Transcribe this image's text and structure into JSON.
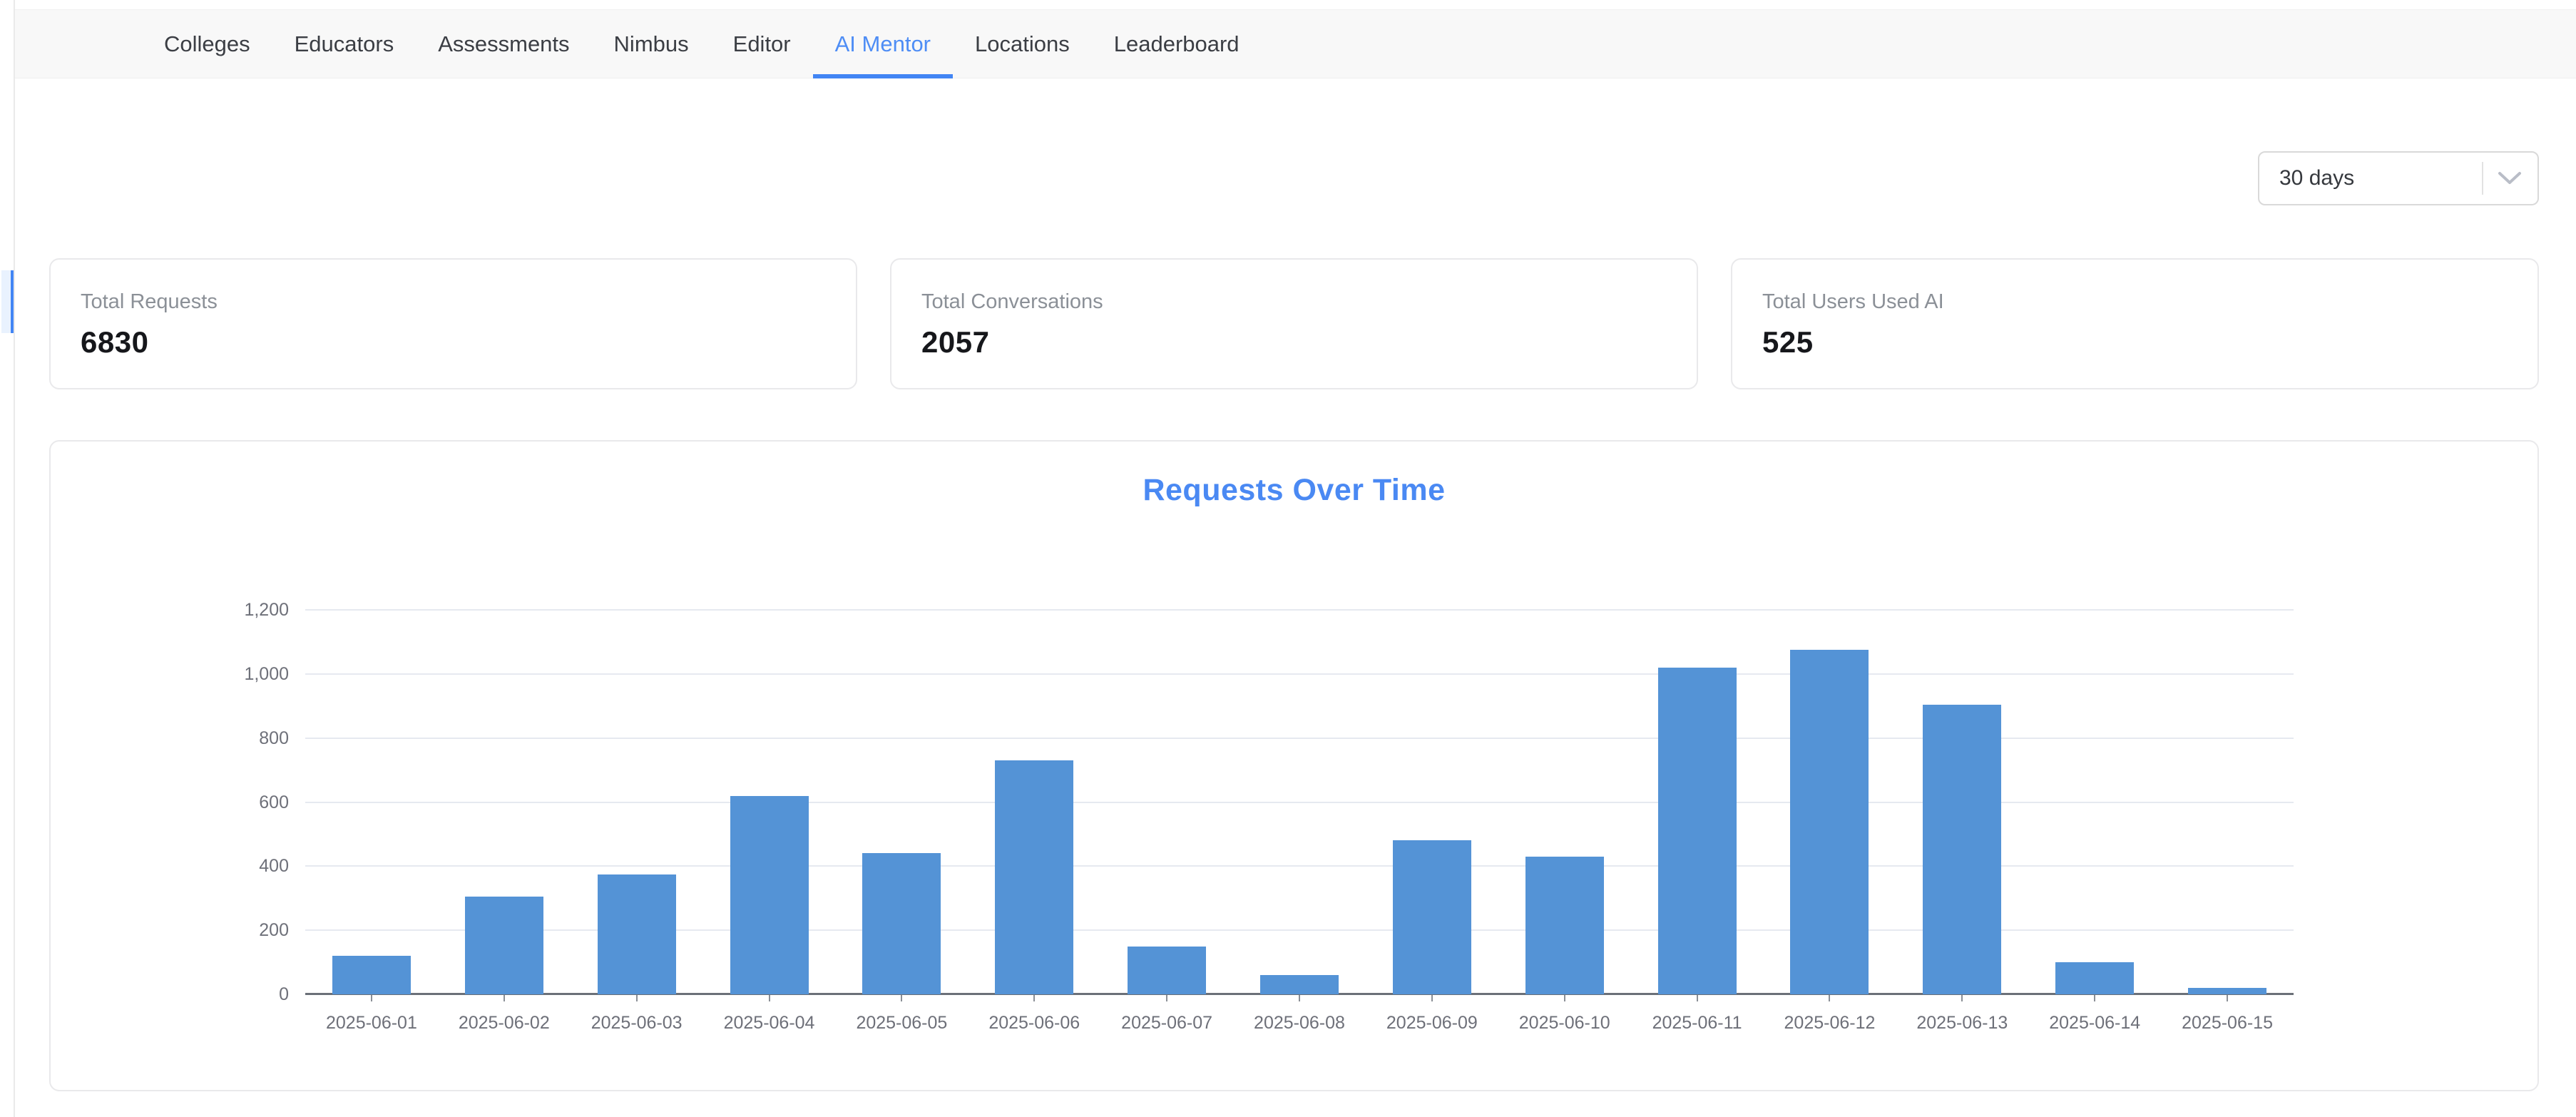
{
  "nav": {
    "tabs": [
      {
        "label": "Colleges",
        "active": false
      },
      {
        "label": "Educators",
        "active": false
      },
      {
        "label": "Assessments",
        "active": false
      },
      {
        "label": "Nimbus",
        "active": false
      },
      {
        "label": "Editor",
        "active": false
      },
      {
        "label": "AI Mentor",
        "active": true
      },
      {
        "label": "Locations",
        "active": false
      },
      {
        "label": "Leaderboard",
        "active": false
      }
    ]
  },
  "filters": {
    "range_select": {
      "value": "30 days",
      "icon": "chevron-down-icon"
    }
  },
  "stats": {
    "cards": [
      {
        "label": "Total Requests",
        "value": "6830"
      },
      {
        "label": "Total Conversations",
        "value": "2057"
      },
      {
        "label": "Total Users Used AI",
        "value": "525"
      }
    ]
  },
  "chart_data": {
    "type": "bar",
    "title": "Requests Over Time",
    "categories": [
      "2025-06-01",
      "2025-06-02",
      "2025-06-03",
      "2025-06-04",
      "2025-06-05",
      "2025-06-06",
      "2025-06-07",
      "2025-06-08",
      "2025-06-09",
      "2025-06-10",
      "2025-06-11",
      "2025-06-12",
      "2025-06-13",
      "2025-06-14",
      "2025-06-15"
    ],
    "values": [
      120,
      305,
      375,
      620,
      440,
      730,
      150,
      60,
      480,
      430,
      1020,
      1075,
      905,
      100,
      20
    ],
    "xlabel": "",
    "ylabel": "",
    "ylim": [
      0,
      1200
    ],
    "yticks": [
      0,
      200,
      400,
      600,
      800,
      1000,
      1200
    ],
    "ytick_labels": [
      "0",
      "200",
      "400",
      "600",
      "800",
      "1,000",
      "1,200"
    ],
    "grid": true,
    "legend": "none",
    "bar_color": "#5493d6",
    "title_color": "#4a89f3"
  },
  "colors": {
    "accent_blue": "#4285f4",
    "active_tab_text": "#4e8df5",
    "navbar_background": "#f8f8f8",
    "gridline": "#e6e9f0",
    "axis_text": "#6e7079",
    "stat_label": "#8b9097"
  }
}
